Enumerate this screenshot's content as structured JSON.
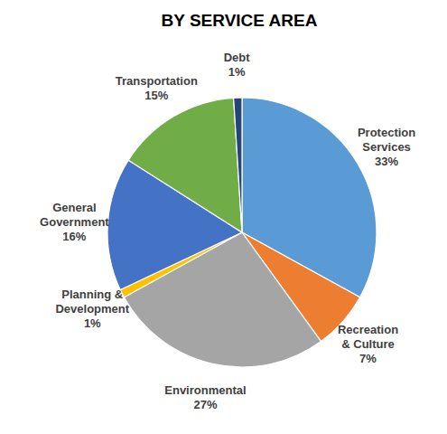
{
  "chart_data": {
    "type": "pie",
    "title": "BY SERVICE AREA",
    "categories": [
      "Protection Services",
      "Recreation & Culture",
      "Environmental",
      "Planning & Development",
      "General Government",
      "Transportation",
      "Debt"
    ],
    "values": [
      33,
      7,
      27,
      1,
      16,
      15,
      1
    ],
    "value_labels": [
      "33%",
      "7%",
      "27%",
      "1%",
      "16%",
      "15%",
      "1%"
    ],
    "colors": [
      "#5b9bd5",
      "#ed7d31",
      "#a5a5a5",
      "#ffc000",
      "#4472c4",
      "#70ad47",
      "#264478"
    ],
    "data_labels": true
  }
}
